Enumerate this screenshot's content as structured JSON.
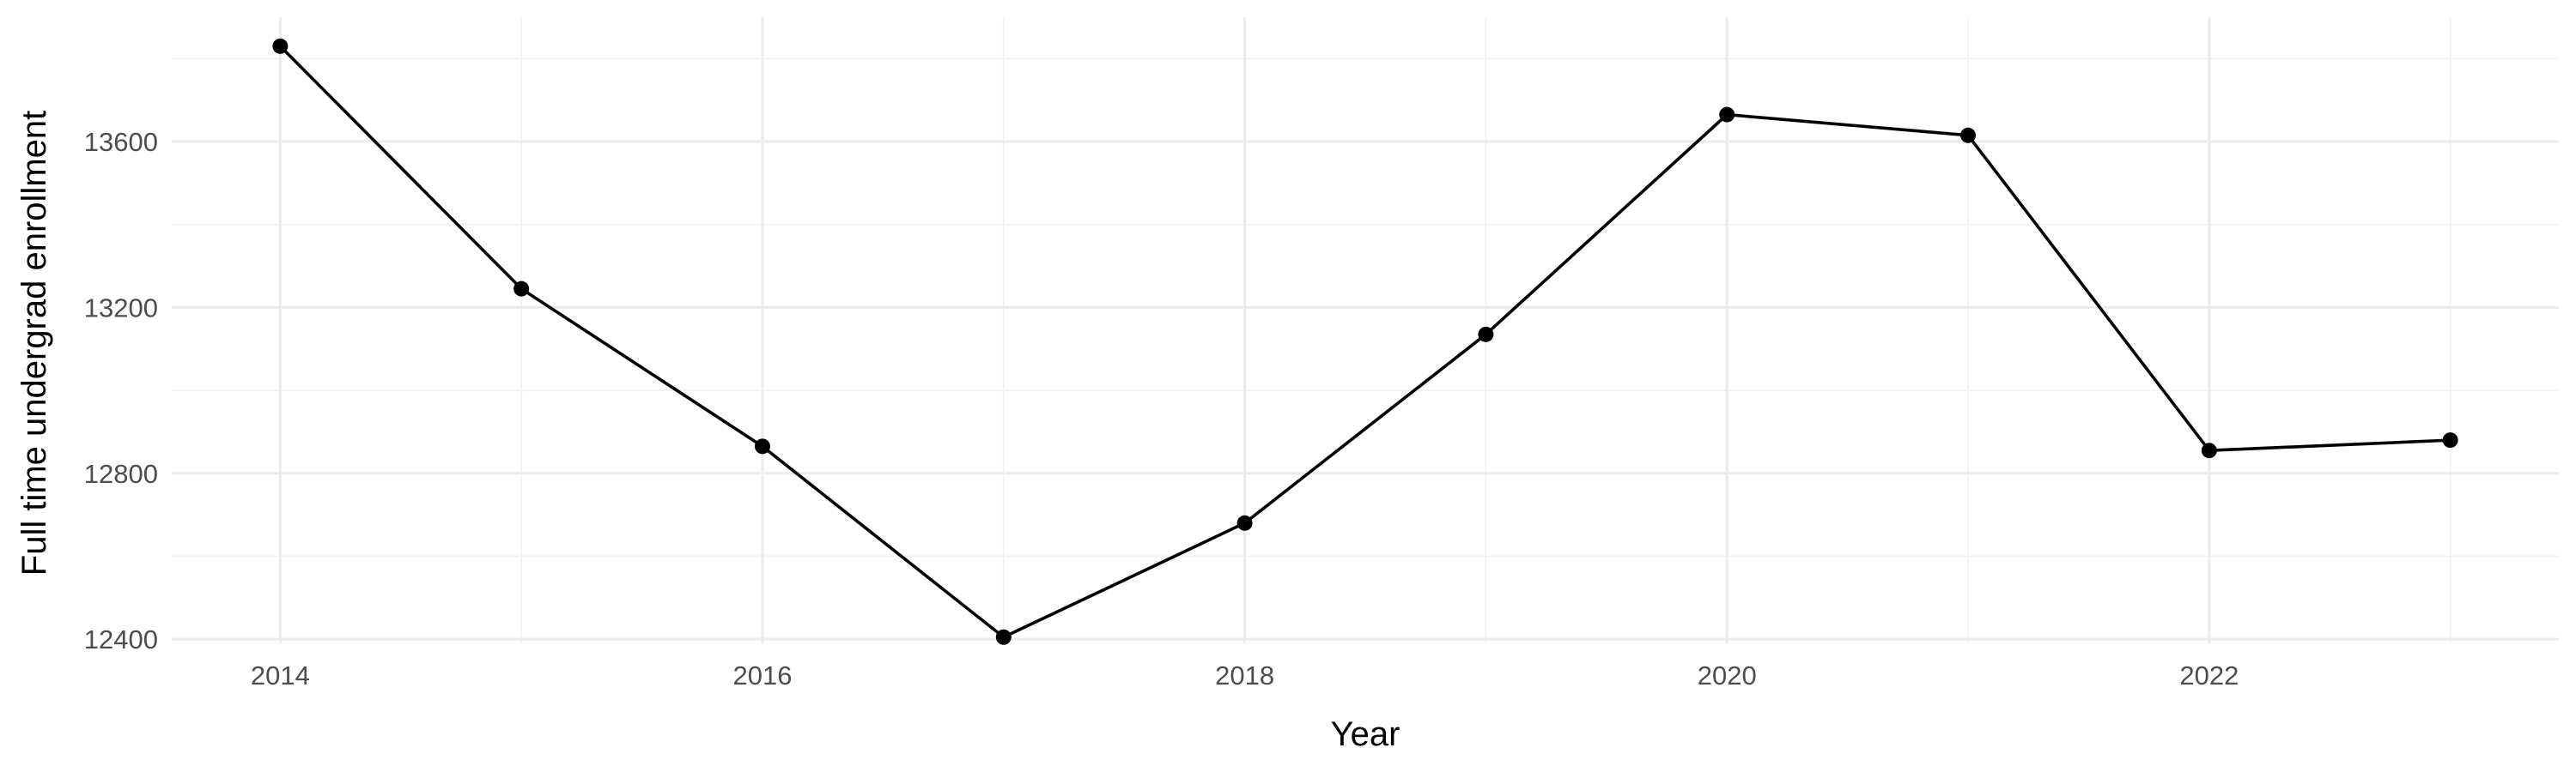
{
  "chart_data": {
    "type": "line",
    "xlabel": "Year",
    "ylabel": "Full time undergrad enrollment",
    "x": [
      2014,
      2015,
      2016,
      2017,
      2018,
      2019,
      2020,
      2021,
      2022,
      2023
    ],
    "series": [
      {
        "values": [
          13830,
          13245,
          12865,
          12405,
          12680,
          13135,
          13665,
          13615,
          12855,
          12880
        ]
      }
    ],
    "x_ticks": [
      "2014",
      "2016",
      "2018",
      "2020",
      "2022"
    ],
    "y_ticks": [
      "12400",
      "12800",
      "13200",
      "13600"
    ],
    "xlim": [
      2013.55,
      2023.45
    ],
    "ylim": [
      12390,
      13900
    ],
    "grid": true,
    "legend": "none",
    "colors": {
      "line": "#000000",
      "grid": "#ebebeb",
      "background": "#ffffff"
    }
  }
}
